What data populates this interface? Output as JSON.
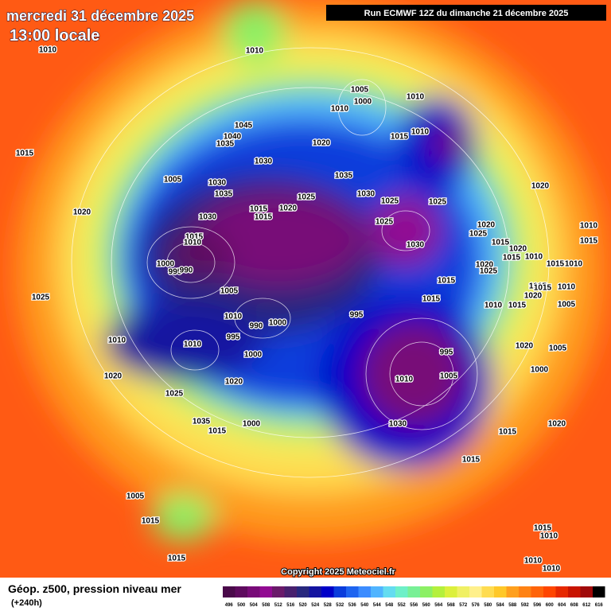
{
  "header": {
    "date": "mercredi 31 décembre 2025",
    "time": "13:00 locale",
    "run": "Run ECMWF 12Z du dimanche 21 décembre 2025"
  },
  "isobar_labels": [
    1010,
    1010,
    1005,
    1000,
    1010,
    1010,
    1045,
    1040,
    1035,
    1020,
    1015,
    1010,
    1015,
    1030,
    1035,
    1005,
    1030,
    1035,
    1030,
    1025,
    1025,
    1025,
    1020,
    1015,
    1020,
    1015,
    1030,
    1025,
    1020,
    1020,
    1025,
    1010,
    1015,
    1010,
    1030,
    1015,
    1020,
    1015,
    1000,
    995,
    990,
    1015,
    1010,
    1020,
    1015,
    1010,
    1025,
    1015,
    1005,
    1025,
    1020,
    1015,
    1015,
    1010,
    1015,
    1010,
    1015,
    1005,
    1010,
    995,
    990,
    1000,
    995,
    1010,
    1010,
    1020,
    1005,
    1000,
    995,
    1005,
    1010,
    1020,
    1000,
    1020,
    1025,
    1035,
    1000,
    1030,
    1015,
    1015,
    1020,
    1015,
    1005,
    1015,
    1015,
    1010,
    1015,
    1010,
    1010
  ],
  "copyright": "Copyright 2025 Meteociel.fr",
  "legend": {
    "title": "Géop. z500, pression niveau mer",
    "lead": "(+240h)",
    "labels": [
      "496",
      "500",
      "504",
      "508",
      "512",
      "516",
      "520",
      "524",
      "528",
      "532",
      "536",
      "540",
      "544",
      "548",
      "552",
      "556",
      "560",
      "564",
      "568",
      "572",
      "576",
      "580",
      "584",
      "588",
      "592",
      "596",
      "600",
      "604",
      "608",
      "612",
      "616"
    ],
    "colors": [
      "#4a0a4a",
      "#5e0a5e",
      "#780a78",
      "#920a92",
      "#6a1a6a",
      "#48206e",
      "#28287e",
      "#1414a0",
      "#0000c8",
      "#0a3cdc",
      "#1e64f0",
      "#3c8cff",
      "#50b4ff",
      "#64dcf0",
      "#6ef0c8",
      "#78f096",
      "#8cf064",
      "#b4f03c",
      "#dcf03c",
      "#f0f064",
      "#fff08c",
      "#ffdc50",
      "#ffc828",
      "#ffa01e",
      "#ff8214",
      "#ff640a",
      "#ff4600",
      "#e62800",
      "#c81400",
      "#a00a0a",
      "#000000"
    ]
  }
}
